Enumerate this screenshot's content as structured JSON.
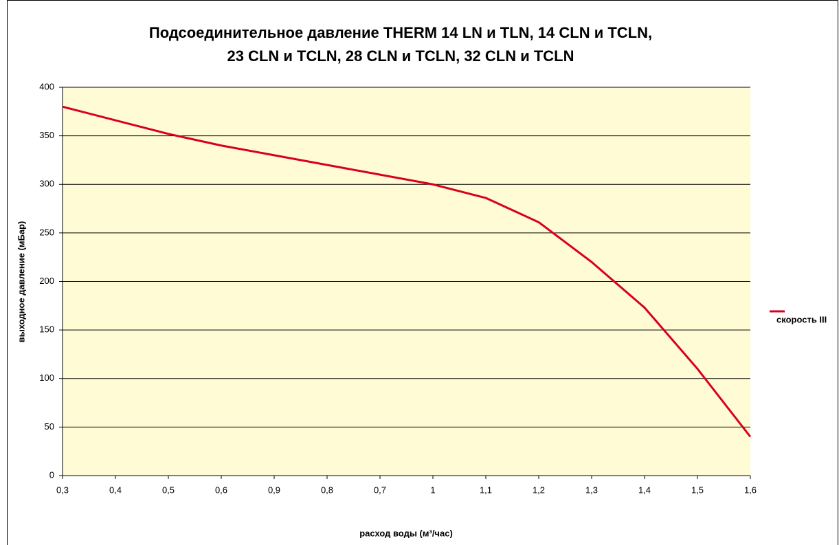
{
  "chart_data": {
    "type": "line",
    "title": [
      "Подсоединительное давление THERM 14 LN и TLN, 14 CLN и TCLN,",
      "23 CLN и TCLN, 28 CLN и TCLN, 32 CLN и TCLN"
    ],
    "x_label": "расход воды (м³/час)",
    "y_label": "выходное давление (мБар)",
    "categories": [
      "0,3",
      "0,4",
      "0,5",
      "0,6",
      "0,9",
      "0,8",
      "0,7",
      "1",
      "1,1",
      "1,2",
      "1,3",
      "1,4",
      "1,5",
      "1,6"
    ],
    "series": [
      {
        "name": "скорость III",
        "color": "#d8001c",
        "values": [
          380,
          366,
          352,
          340,
          330,
          320,
          310,
          300,
          286,
          261,
          220,
          173,
          110,
          40
        ]
      }
    ],
    "ylim": [
      0,
      400
    ],
    "yticks": [
      0,
      50,
      100,
      150,
      200,
      250,
      300,
      350,
      400
    ],
    "grid": true,
    "legend": "right"
  }
}
